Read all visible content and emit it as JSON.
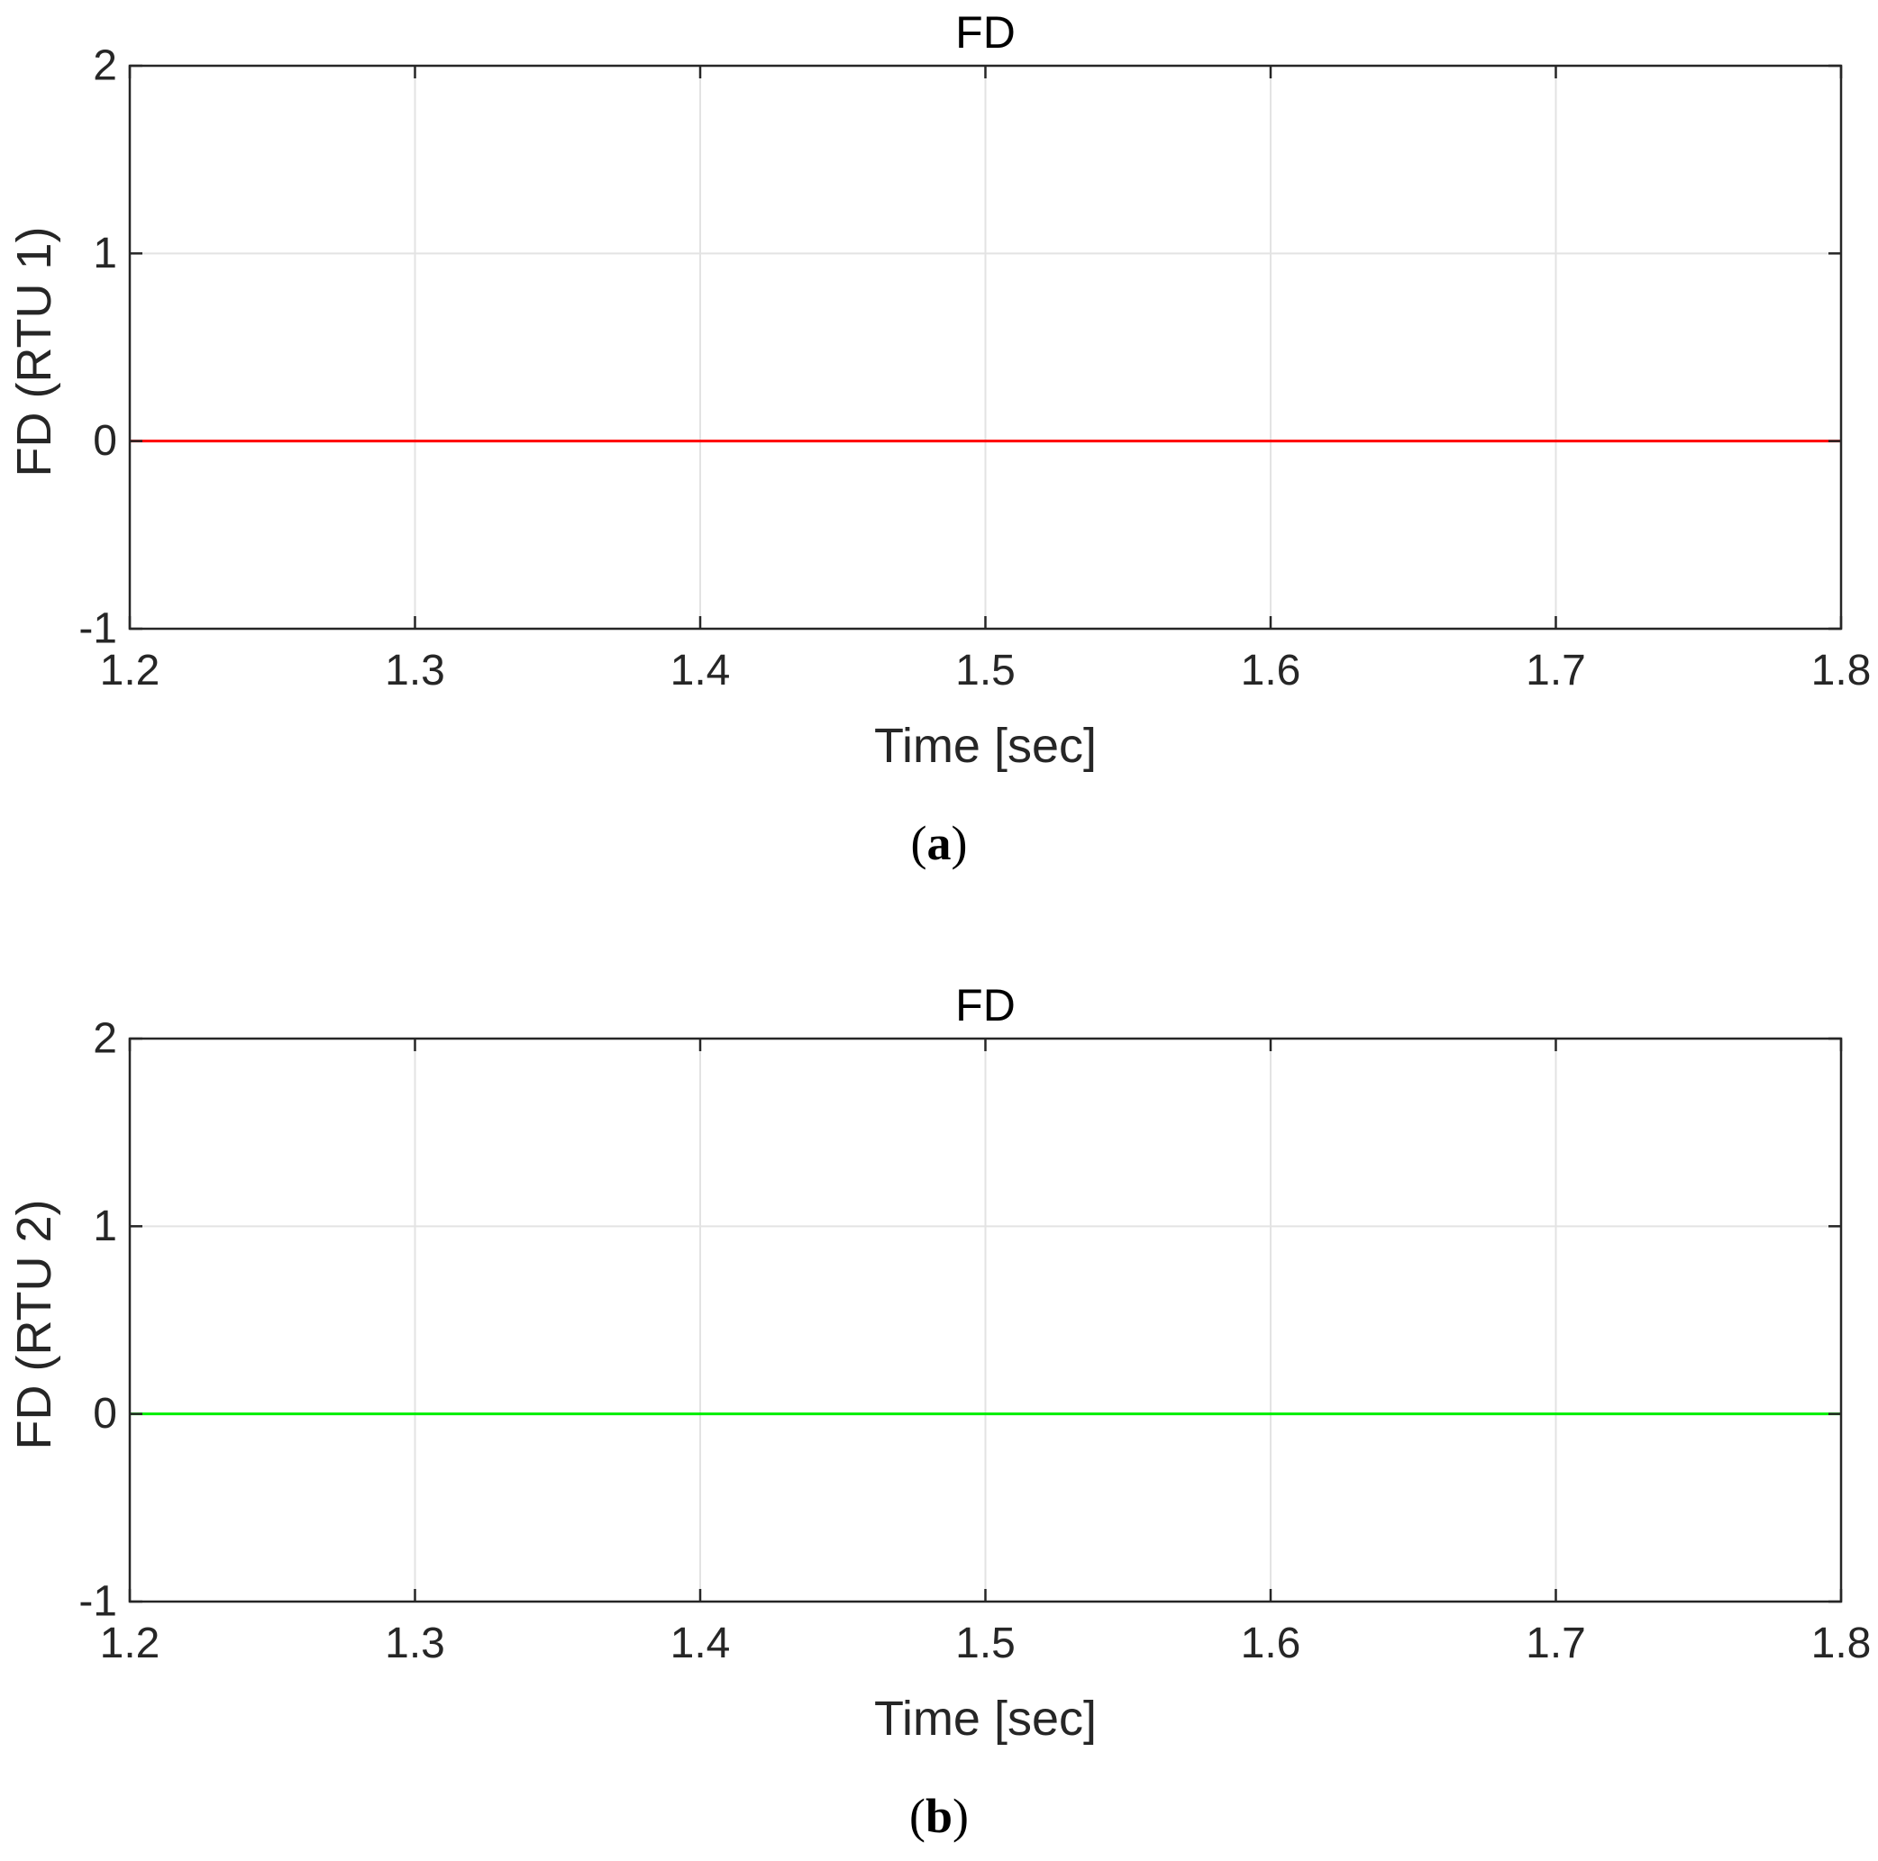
{
  "chart_data": [
    {
      "type": "line",
      "title": "FD",
      "xlabel": "Time [sec]",
      "ylabel": "FD (RTU 1)",
      "xlim": [
        1.2,
        1.8
      ],
      "ylim": [
        -1,
        2
      ],
      "xticks": [
        1.2,
        1.3,
        1.4,
        1.5,
        1.6,
        1.7,
        1.8
      ],
      "yticks": [
        -1,
        0,
        1,
        2
      ],
      "xtick_labels": [
        "1.2",
        "1.3",
        "1.4",
        "1.5",
        "1.6",
        "1.7",
        "1.8"
      ],
      "ytick_labels": [
        "-1",
        "0",
        "1",
        "2"
      ],
      "grid": true,
      "series": [
        {
          "color": "#ff0000",
          "x": [
            1.2,
            1.8
          ],
          "y": [
            0,
            0
          ]
        }
      ],
      "caption": {
        "open": "(",
        "letter": "a",
        "close": ")"
      }
    },
    {
      "type": "line",
      "title": "FD",
      "xlabel": "Time [sec]",
      "ylabel": "FD (RTU 2)",
      "xlim": [
        1.2,
        1.8
      ],
      "ylim": [
        -1,
        2
      ],
      "xticks": [
        1.2,
        1.3,
        1.4,
        1.5,
        1.6,
        1.7,
        1.8
      ],
      "yticks": [
        -1,
        0,
        1,
        2
      ],
      "xtick_labels": [
        "1.2",
        "1.3",
        "1.4",
        "1.5",
        "1.6",
        "1.7",
        "1.8"
      ],
      "ytick_labels": [
        "-1",
        "0",
        "1",
        "2"
      ],
      "grid": true,
      "series": [
        {
          "color": "#00ee00",
          "x": [
            1.2,
            1.8
          ],
          "y": [
            0,
            0
          ]
        }
      ],
      "caption": {
        "open": "(",
        "letter": "b",
        "close": ")"
      }
    }
  ]
}
